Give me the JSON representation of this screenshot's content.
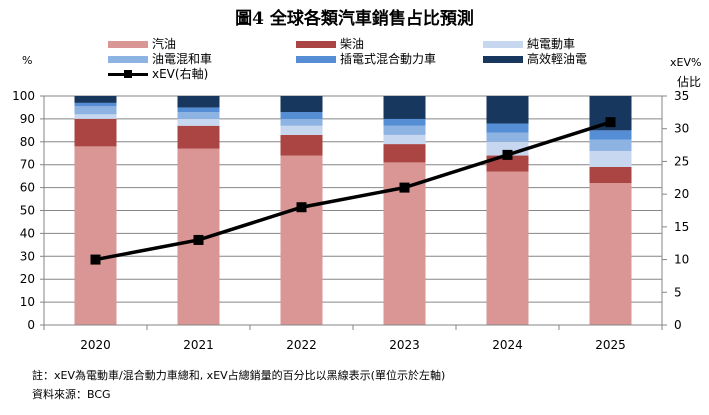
{
  "chart_data": {
    "type": "bar",
    "stacked": true,
    "title": "圖4 全球各類汽車銷售占比預測",
    "categories": [
      "2020",
      "2021",
      "2022",
      "2023",
      "2024",
      "2025"
    ],
    "ylabel": "%",
    "ylim": [
      0,
      100
    ],
    "yticks": [
      0,
      10,
      20,
      30,
      40,
      50,
      60,
      70,
      80,
      90,
      100
    ],
    "y2label": "xEV%",
    "y2label_extra": "佔比",
    "y2lim": [
      0,
      35
    ],
    "y2ticks": [
      0,
      5,
      10,
      15,
      20,
      25,
      30,
      35
    ],
    "grid": true,
    "legend_position": "top",
    "series": [
      {
        "name": "汽油",
        "color": "#d99694",
        "values": [
          78,
          77,
          74,
          71,
          67,
          62
        ]
      },
      {
        "name": "柴油",
        "color": "#ab4543",
        "values": [
          12,
          10,
          9,
          8,
          7,
          7
        ]
      },
      {
        "name": "純電動車",
        "color": "#c6d7ef",
        "values": [
          2,
          3,
          4,
          4,
          6,
          7
        ]
      },
      {
        "name": "油電混和車",
        "color": "#8db3e2",
        "values": [
          3.5,
          3,
          3,
          4,
          4,
          5
        ]
      },
      {
        "name": "插電式混合動力車",
        "color": "#558ed5",
        "values": [
          1.5,
          2,
          3,
          3,
          4,
          4
        ]
      },
      {
        "name": "高效輕油電",
        "color": "#17375e",
        "values": [
          3,
          5,
          7,
          10,
          12,
          15
        ]
      }
    ],
    "line_series": {
      "name": "xEV(右軸)",
      "color": "#000000",
      "axis": "right",
      "values": [
        10,
        13,
        18,
        21,
        26,
        31
      ]
    }
  },
  "legend_order": [
    {
      "name": "汽油",
      "series": 0
    },
    {
      "name": "柴油",
      "series": 1
    },
    {
      "name": "純電動車",
      "series": 2
    },
    {
      "name": "油電混和車",
      "series": 3
    },
    {
      "name": "插電式混合動力車",
      "series": 4
    },
    {
      "name": "高效輕油電",
      "series": 5
    },
    {
      "name": "xEV(右軸)",
      "line": true
    }
  ],
  "notes": {
    "note": "註：xEV為電動車/混合動力車總和, xEV占總銷量的百分比以黑線表示(單位示於左軸)",
    "source": "資料來源：BCG"
  }
}
